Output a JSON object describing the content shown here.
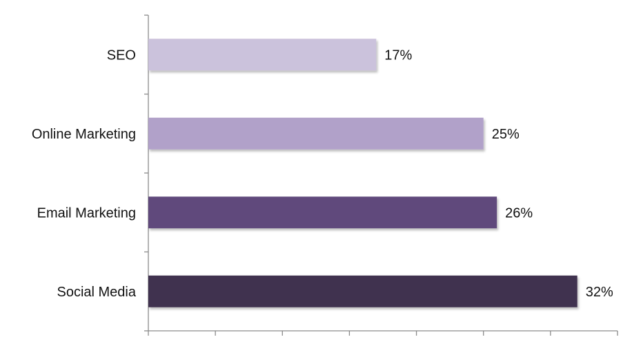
{
  "chart_data": {
    "type": "bar",
    "orientation": "horizontal",
    "categories": [
      "SEO",
      "Online Marketing",
      "Email Marketing",
      "Social Media"
    ],
    "values": [
      17,
      25,
      26,
      32
    ],
    "value_labels": [
      "17%",
      "25%",
      "26%",
      "32%"
    ],
    "colors": [
      "#cbc2dc",
      "#b1a1c9",
      "#614a7b",
      "#41314f"
    ],
    "xlim": [
      0,
      35
    ],
    "grid": false,
    "legend": "none"
  }
}
